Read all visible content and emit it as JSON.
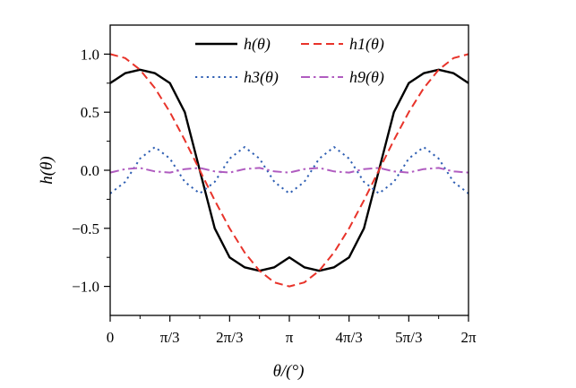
{
  "chart_data": {
    "type": "line",
    "xlabel": "θ/(°)",
    "ylabel": "h(θ)",
    "xlim": [
      0,
      6.283185
    ],
    "ylim": [
      -1.25,
      1.25
    ],
    "x_ticks": [
      {
        "value": 0,
        "label": "0"
      },
      {
        "value": 1.047198,
        "label": "π/3"
      },
      {
        "value": 2.094395,
        "label": "2π/3"
      },
      {
        "value": 3.141593,
        "label": "π"
      },
      {
        "value": 4.18879,
        "label": "4π/3"
      },
      {
        "value": 5.235988,
        "label": "5π/3"
      },
      {
        "value": 6.283185,
        "label": "2π"
      }
    ],
    "y_ticks": [
      {
        "value": 1.0,
        "label": "1.0"
      },
      {
        "value": 0.5,
        "label": "0.5"
      },
      {
        "value": 0.0,
        "label": "0.0"
      },
      {
        "value": -0.5,
        "label": "−0.5"
      },
      {
        "value": -1.0,
        "label": "−1.0"
      }
    ],
    "grid": false,
    "legend_position": "top",
    "series": [
      {
        "name": "h(θ)",
        "color": "#000000",
        "style": "solid",
        "x": [
          0,
          0.2618,
          0.5236,
          0.7854,
          1.0472,
          1.309,
          1.5708,
          1.8326,
          2.0944,
          2.3562,
          2.618,
          2.8798,
          3.1416,
          3.4034,
          3.6652,
          3.927,
          4.1888,
          4.4506,
          4.7124,
          4.9742,
          5.236,
          5.4978,
          5.7596,
          6.0214,
          6.2832
        ],
        "values": [
          0.75,
          0.836,
          0.866,
          0.836,
          0.75,
          0.5,
          0.0,
          -0.5,
          -0.75,
          -0.836,
          -0.866,
          -0.836,
          -0.75,
          -0.836,
          -0.866,
          -0.836,
          -0.75,
          -0.5,
          0.0,
          0.5,
          0.75,
          0.836,
          0.866,
          0.836,
          0.75
        ]
      },
      {
        "name": "h1(θ)",
        "color": "#e8332a",
        "style": "dashed",
        "x": [
          0,
          0.2618,
          0.5236,
          0.7854,
          1.0472,
          1.309,
          1.5708,
          1.8326,
          2.0944,
          2.3562,
          2.618,
          2.8798,
          3.1416,
          3.4034,
          3.6652,
          3.927,
          4.1888,
          4.4506,
          4.7124,
          4.9742,
          5.236,
          5.4978,
          5.7596,
          6.0214,
          6.2832
        ],
        "values": [
          1.0,
          0.966,
          0.866,
          0.707,
          0.5,
          0.259,
          0.0,
          -0.259,
          -0.5,
          -0.707,
          -0.866,
          -0.966,
          -1.0,
          -0.966,
          -0.866,
          -0.707,
          -0.5,
          -0.259,
          0.0,
          0.259,
          0.5,
          0.707,
          0.866,
          0.966,
          1.0
        ]
      },
      {
        "name": "h3(θ)",
        "color": "#2f5fb3",
        "style": "dotted",
        "x": [
          0,
          0.2618,
          0.5236,
          0.7854,
          1.0472,
          1.309,
          1.5708,
          1.8326,
          2.0944,
          2.3562,
          2.618,
          2.8798,
          3.1416,
          3.4034,
          3.6652,
          3.927,
          4.1888,
          4.4506,
          4.7124,
          4.9742,
          5.236,
          5.4978,
          5.7596,
          6.0214,
          6.2832
        ],
        "values": [
          -0.2,
          -0.1,
          0.1,
          0.2,
          0.1,
          -0.1,
          -0.2,
          -0.1,
          0.1,
          0.2,
          0.1,
          -0.1,
          -0.2,
          -0.1,
          0.1,
          0.2,
          0.1,
          -0.1,
          -0.2,
          -0.1,
          0.1,
          0.2,
          0.1,
          -0.1,
          -0.2
        ]
      },
      {
        "name": "h9(θ)",
        "color": "#b05cc0",
        "style": "dashdot",
        "x": [
          0,
          0.2618,
          0.5236,
          0.7854,
          1.0472,
          1.309,
          1.5708,
          1.8326,
          2.0944,
          2.3562,
          2.618,
          2.8798,
          3.1416,
          3.4034,
          3.6652,
          3.927,
          4.1888,
          4.4506,
          4.7124,
          4.9742,
          5.236,
          5.4978,
          5.7596,
          6.0214,
          6.2832
        ],
        "values": [
          -0.02,
          0.01,
          0.02,
          -0.01,
          -0.02,
          0.01,
          0.02,
          -0.01,
          -0.02,
          0.01,
          0.02,
          -0.01,
          -0.02,
          0.01,
          0.02,
          -0.01,
          -0.02,
          0.01,
          0.02,
          -0.01,
          -0.02,
          0.01,
          0.02,
          -0.01,
          -0.02
        ]
      }
    ]
  }
}
